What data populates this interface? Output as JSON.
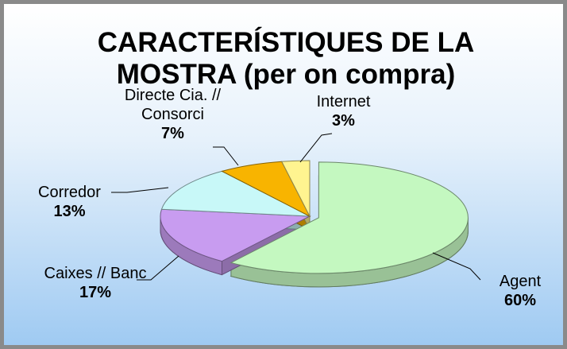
{
  "chart_data": {
    "type": "pie",
    "title": "CARACTERÍSTIQUES DE LA MOSTRA (per on compra)",
    "categories": [
      "Agent",
      "Caixes // Banc",
      "Corredor",
      "Directe Cia. // Consorci",
      "Internet"
    ],
    "values": [
      60,
      17,
      13,
      7,
      3
    ],
    "value_labels": [
      "60%",
      "17%",
      "13%",
      "7%",
      "3%"
    ],
    "colors": [
      "#c4f8c0",
      "#c89cf0",
      "#c8f8f8",
      "#f8b400",
      "#fff490"
    ]
  }
}
